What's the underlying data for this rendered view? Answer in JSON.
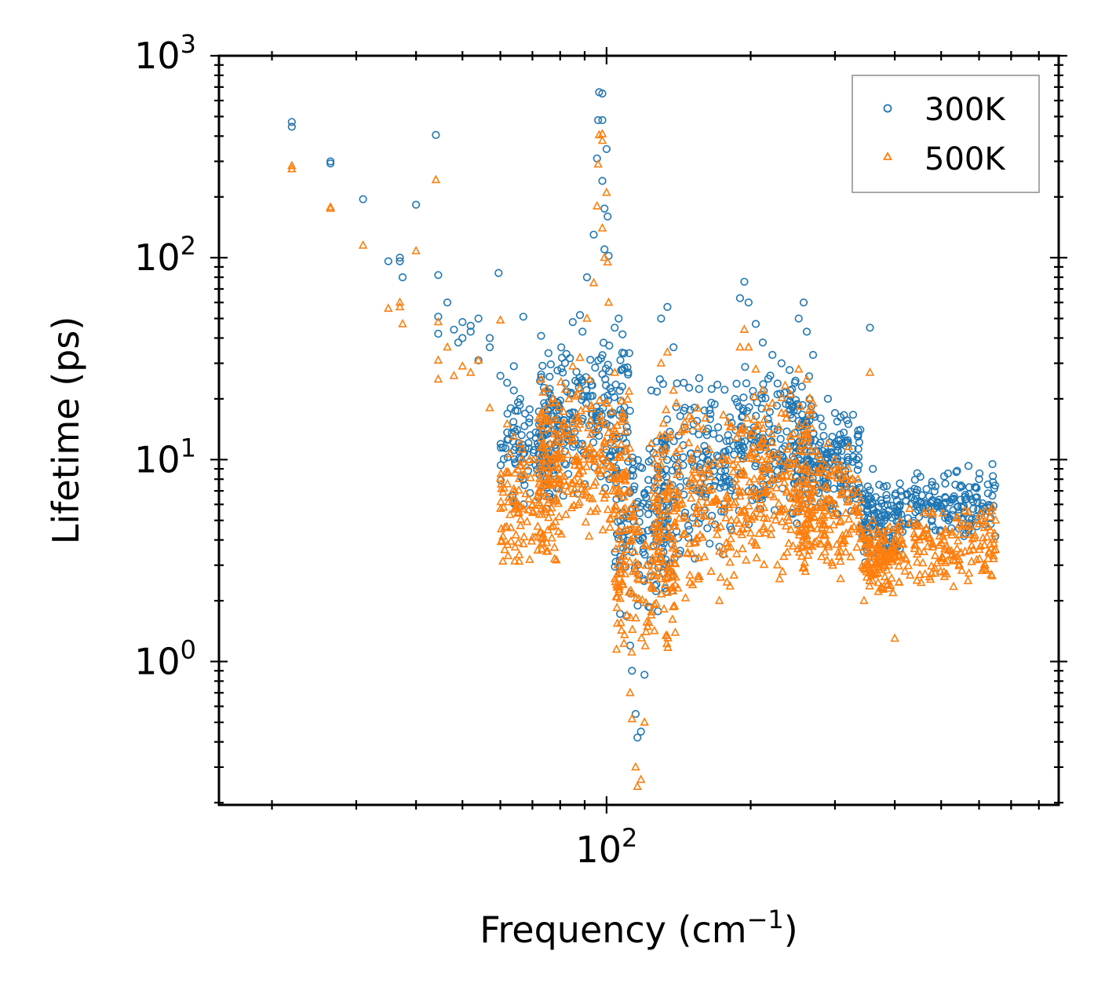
{
  "chart_data": {
    "type": "scatter",
    "xscale": "log",
    "yscale": "log",
    "xlim": [
      15.5,
      880
    ],
    "ylim": [
      0.195,
      1000
    ],
    "xlabel": "Frequency (cm",
    "xlabel_sup": "−1",
    "xlabel_tail": ")",
    "ylabel": "Lifetime (ps)",
    "x_ticks": [
      {
        "base": "10",
        "exp": "2",
        "value": 100
      }
    ],
    "y_ticks": [
      {
        "base": "10",
        "exp": "0",
        "value": 1
      },
      {
        "base": "10",
        "exp": "1",
        "value": 10
      },
      {
        "base": "10",
        "exp": "2",
        "value": 100
      },
      {
        "base": "10",
        "exp": "3",
        "value": 1000
      }
    ],
    "legend": {
      "position": "top-right"
    },
    "series": [
      {
        "name": "300K",
        "marker": "circle",
        "color": "#1f77b4",
        "anchor_points": [
          [
            22,
            470
          ],
          [
            22,
            445
          ],
          [
            26.5,
            300
          ],
          [
            26.5,
            293
          ],
          [
            31,
            195
          ],
          [
            35,
            96
          ],
          [
            37,
            100
          ],
          [
            37,
            96
          ],
          [
            37.5,
            80
          ],
          [
            40,
            183
          ],
          [
            44,
            405
          ],
          [
            44.5,
            82
          ],
          [
            44.5,
            51
          ],
          [
            44.5,
            42
          ],
          [
            46.5,
            60
          ],
          [
            48,
            44
          ],
          [
            49,
            38
          ],
          [
            50,
            48
          ],
          [
            50,
            40
          ],
          [
            52,
            46
          ],
          [
            52,
            43
          ],
          [
            54,
            50
          ],
          [
            54,
            31
          ],
          [
            57,
            40
          ],
          [
            57,
            36
          ],
          [
            59.5,
            84
          ],
          [
            60,
            26
          ],
          [
            62,
            24
          ],
          [
            64,
            22
          ],
          [
            64,
            29
          ],
          [
            66,
            20
          ],
          [
            67,
            51
          ],
          [
            69,
            16
          ],
          [
            73,
            41
          ],
          [
            75.5,
            14
          ],
          [
            77,
            20
          ],
          [
            81,
            27
          ],
          [
            85,
            48
          ],
          [
            88,
            52
          ],
          [
            91,
            80
          ],
          [
            94,
            130
          ],
          [
            95.5,
            310
          ],
          [
            96,
            480
          ],
          [
            96.5,
            660
          ],
          [
            98,
            650
          ],
          [
            98,
            480
          ],
          [
            98,
            240
          ],
          [
            99,
            175
          ],
          [
            99,
            110
          ],
          [
            100,
            345
          ],
          [
            100.5,
            160
          ],
          [
            101,
            102
          ],
          [
            104,
            45
          ],
          [
            106,
            50
          ],
          [
            108,
            28
          ],
          [
            111,
            27
          ],
          [
            112,
            1.2
          ],
          [
            113,
            0.9
          ],
          [
            115,
            0.55
          ],
          [
            116,
            0.42
          ],
          [
            118,
            0.45
          ],
          [
            120,
            0.86
          ],
          [
            124,
            22
          ],
          [
            130,
            50
          ],
          [
            134,
            57
          ],
          [
            138,
            36
          ],
          [
            145,
            24
          ],
          [
            152,
            15
          ],
          [
            160,
            5.6
          ],
          [
            172,
            3.7
          ],
          [
            186,
            14
          ],
          [
            190,
            63
          ],
          [
            194,
            76
          ],
          [
            198,
            60
          ],
          [
            205,
            47
          ],
          [
            212,
            38
          ],
          [
            222,
            33
          ],
          [
            232,
            30
          ],
          [
            242,
            22
          ],
          [
            252,
            50
          ],
          [
            258,
            60
          ],
          [
            262,
            43
          ],
          [
            270,
            33
          ],
          [
            280,
            16
          ],
          [
            290,
            20
          ],
          [
            300,
            17
          ],
          [
            310,
            12
          ],
          [
            320,
            15
          ],
          [
            335,
            13
          ],
          [
            345,
            3.5
          ],
          [
            355,
            45
          ],
          [
            360,
            9
          ],
          [
            370,
            5.8
          ],
          [
            385,
            7.4
          ],
          [
            400,
            4.0
          ],
          [
            420,
            4.8
          ],
          [
            450,
            5.8
          ],
          [
            480,
            6.3
          ],
          [
            510,
            7.6
          ],
          [
            540,
            8.8
          ],
          [
            570,
            9.3
          ],
          [
            600,
            8.0
          ],
          [
            640,
            9.5
          ]
        ],
        "clouds": [
          {
            "x0": 60,
            "x1": 80,
            "y0": 5,
            "y1": 25,
            "n": 120
          },
          {
            "x0": 72,
            "x1": 112,
            "y0": 6,
            "y1": 45,
            "n": 220
          },
          {
            "x0": 104,
            "x1": 140,
            "y0": 1.5,
            "y1": 14,
            "n": 150
          },
          {
            "x0": 125,
            "x1": 185,
            "y0": 3,
            "y1": 30,
            "n": 170
          },
          {
            "x0": 185,
            "x1": 270,
            "y0": 4.5,
            "y1": 30,
            "n": 200
          },
          {
            "x0": 250,
            "x1": 340,
            "y0": 5,
            "y1": 18,
            "n": 160
          },
          {
            "x0": 340,
            "x1": 410,
            "y0": 2.9,
            "y1": 8,
            "n": 120
          },
          {
            "x0": 400,
            "x1": 650,
            "y0": 4,
            "y1": 9,
            "n": 160
          }
        ]
      },
      {
        "name": "500K",
        "marker": "triangle",
        "color": "#ff7f0e",
        "anchor_points": [
          [
            22,
            285
          ],
          [
            22,
            275
          ],
          [
            26.5,
            178
          ],
          [
            26.5,
            175
          ],
          [
            31,
            115
          ],
          [
            35,
            56
          ],
          [
            37,
            60
          ],
          [
            37,
            57
          ],
          [
            37.5,
            47
          ],
          [
            40,
            108
          ],
          [
            44,
            243
          ],
          [
            44.5,
            48
          ],
          [
            44.5,
            31
          ],
          [
            44.5,
            25
          ],
          [
            46.5,
            36
          ],
          [
            48,
            26
          ],
          [
            50,
            29
          ],
          [
            52,
            27
          ],
          [
            54,
            31
          ],
          [
            57,
            18
          ],
          [
            60,
            49
          ],
          [
            62,
            15
          ],
          [
            64,
            13
          ],
          [
            66,
            12
          ],
          [
            69,
            10
          ],
          [
            73,
            25
          ],
          [
            75.5,
            8
          ],
          [
            81,
            15
          ],
          [
            85,
            29
          ],
          [
            88,
            32
          ],
          [
            91,
            50
          ],
          [
            94,
            75
          ],
          [
            95.5,
            180
          ],
          [
            96,
            290
          ],
          [
            96.5,
            405
          ],
          [
            98,
            410
          ],
          [
            98,
            380
          ],
          [
            98,
            140
          ],
          [
            99,
            100
          ],
          [
            100,
            210
          ],
          [
            100.5,
            95
          ],
          [
            101,
            60
          ],
          [
            104,
            27
          ],
          [
            108,
            17
          ],
          [
            112,
            0.7
          ],
          [
            113,
            0.52
          ],
          [
            115,
            0.3
          ],
          [
            116,
            0.24
          ],
          [
            118,
            0.26
          ],
          [
            120,
            0.5
          ],
          [
            124,
            12
          ],
          [
            130,
            30
          ],
          [
            134,
            34
          ],
          [
            138,
            22
          ],
          [
            145,
            14
          ],
          [
            152,
            8
          ],
          [
            160,
            3.3
          ],
          [
            172,
            2.0
          ],
          [
            186,
            8
          ],
          [
            190,
            36
          ],
          [
            194,
            44
          ],
          [
            198,
            36
          ],
          [
            205,
            28
          ],
          [
            212,
            22
          ],
          [
            222,
            19
          ],
          [
            232,
            17
          ],
          [
            242,
            13
          ],
          [
            252,
            28
          ],
          [
            262,
            25
          ],
          [
            270,
            19
          ],
          [
            280,
            9
          ],
          [
            290,
            12
          ],
          [
            300,
            10
          ],
          [
            310,
            7
          ],
          [
            320,
            9
          ],
          [
            335,
            8
          ],
          [
            345,
            2.0
          ],
          [
            355,
            27
          ],
          [
            360,
            5
          ],
          [
            370,
            3.2
          ],
          [
            385,
            2.5
          ],
          [
            400,
            1.3
          ],
          [
            420,
            2.8
          ],
          [
            450,
            3.5
          ],
          [
            480,
            3.8
          ],
          [
            510,
            4.5
          ],
          [
            540,
            5.2
          ],
          [
            570,
            5.5
          ],
          [
            600,
            4.8
          ],
          [
            640,
            5.8
          ]
        ],
        "clouds": [
          {
            "x0": 60,
            "x1": 80,
            "y0": 2.7,
            "y1": 14,
            "n": 140
          },
          {
            "x0": 72,
            "x1": 112,
            "y0": 3.5,
            "y1": 28,
            "n": 240
          },
          {
            "x0": 104,
            "x1": 140,
            "y0": 0.9,
            "y1": 9,
            "n": 160
          },
          {
            "x0": 125,
            "x1": 185,
            "y0": 1.8,
            "y1": 20,
            "n": 180
          },
          {
            "x0": 185,
            "x1": 270,
            "y0": 2.5,
            "y1": 25,
            "n": 220
          },
          {
            "x0": 250,
            "x1": 340,
            "y0": 2.5,
            "y1": 12,
            "n": 170
          },
          {
            "x0": 340,
            "x1": 410,
            "y0": 1.9,
            "y1": 5,
            "n": 130
          },
          {
            "x0": 400,
            "x1": 650,
            "y0": 2.3,
            "y1": 6,
            "n": 160
          }
        ]
      }
    ]
  }
}
